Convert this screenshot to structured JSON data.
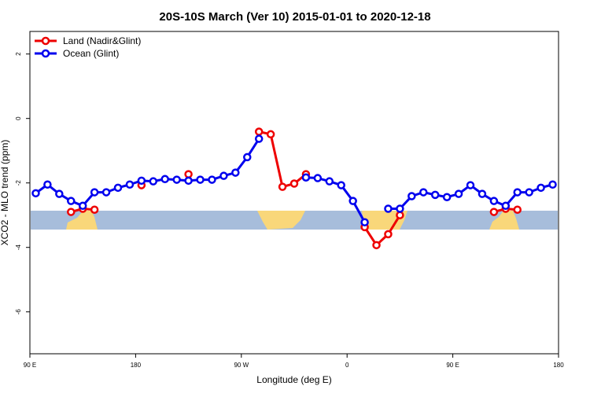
{
  "chart_data": {
    "type": "line",
    "title": "20S-10S March (Ver 10)   2015-01-01 to 2020-12-18",
    "x_label": "Longitude (deg E)",
    "y_label": "XCO2 - MLO trend (ppm)",
    "x": [
      95,
      105,
      115,
      125,
      135,
      145,
      155,
      165,
      175,
      185,
      195,
      205,
      215,
      225,
      235,
      245,
      255,
      265,
      275,
      285,
      295,
      305,
      315,
      325,
      335,
      345,
      355,
      365,
      375,
      385,
      395,
      405,
      415,
      425,
      435,
      445,
      455,
      465,
      475,
      485,
      495,
      505,
      515,
      525,
      535
    ],
    "series": [
      {
        "name": "Land (Nadir&Glint)",
        "color": "#ee0000",
        "values": [
          null,
          null,
          null,
          -2.9,
          -2.8,
          -2.83,
          null,
          null,
          null,
          -2.07,
          null,
          null,
          null,
          -1.73,
          null,
          null,
          null,
          null,
          null,
          -0.41,
          -0.49,
          -2.12,
          -2.02,
          -1.73,
          null,
          null,
          null,
          null,
          -3.37,
          -3.93,
          -3.59,
          -3.0,
          null,
          null,
          null,
          null,
          null,
          null,
          null,
          -2.9,
          -2.8,
          -2.83,
          null,
          null,
          null
        ]
      },
      {
        "name": "Ocean (Glint)",
        "color": "#0000ee",
        "values": [
          -2.32,
          -2.05,
          -2.34,
          -2.56,
          -2.71,
          -2.29,
          -2.29,
          -2.15,
          -2.05,
          -1.93,
          -1.95,
          -1.88,
          -1.9,
          -1.93,
          -1.9,
          -1.9,
          -1.78,
          -1.68,
          -1.2,
          -0.63,
          null,
          null,
          null,
          -1.83,
          -1.85,
          -1.95,
          -2.07,
          -2.56,
          -3.22,
          null,
          -2.8,
          -2.8,
          -2.41,
          -2.29,
          -2.37,
          -2.44,
          -2.34,
          -2.07,
          -2.34,
          -2.56,
          -2.71,
          -2.29,
          -2.29,
          -2.15,
          -2.05
        ]
      }
    ],
    "xlim": [
      90,
      540
    ],
    "xticks": [
      {
        "value": 90,
        "label": "90 E"
      },
      {
        "value": 180,
        "label": "180"
      },
      {
        "value": 270,
        "label": "90 W"
      },
      {
        "value": 360,
        "label": "0"
      },
      {
        "value": 450,
        "label": "90 E"
      },
      {
        "value": 540,
        "label": "180"
      }
    ],
    "ylim": [
      -7.3,
      2.7
    ],
    "yticks": [
      2,
      0,
      -2,
      -4,
      -6
    ],
    "legend": "upper left"
  }
}
